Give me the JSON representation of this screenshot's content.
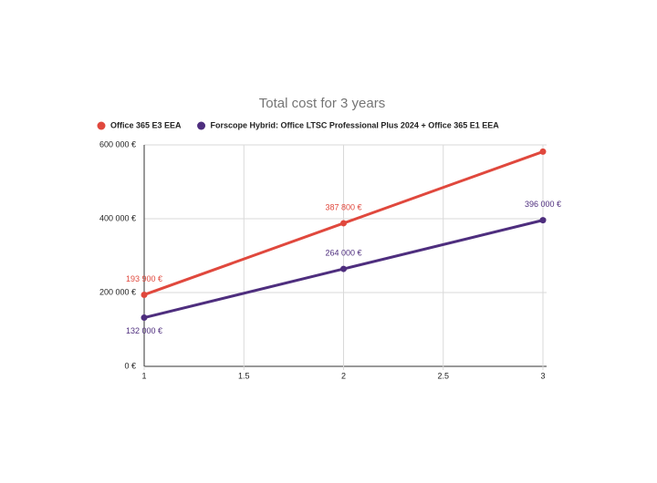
{
  "chart_data": {
    "type": "line",
    "title": "Total cost for 3 years",
    "x": [
      1,
      2,
      3
    ],
    "series": [
      {
        "name": "Office 365 E3 EEA",
        "color": "#e0483d",
        "values": [
          193900,
          387800,
          581700
        ],
        "value_labels": [
          "193 900 €",
          "387 800 €",
          null
        ]
      },
      {
        "name": "Forscope Hybrid: Office LTSC Professional Plus 2024 + Office 365 E1 EEA",
        "color": "#4e2e7e",
        "values": [
          132000,
          264000,
          396000
        ],
        "value_labels": [
          "132 000 €",
          "264 000 €",
          "396 000 €"
        ]
      }
    ],
    "xlim": [
      1,
      3
    ],
    "xticks": [
      1,
      1.5,
      2,
      2.5,
      3
    ],
    "ylim": [
      0,
      600000
    ],
    "yticks": [
      {
        "value": 0,
        "label": "0 €"
      },
      {
        "value": 200000,
        "label": "200 000 €"
      },
      {
        "value": 400000,
        "label": "400 000 €"
      },
      {
        "value": 600000,
        "label": "600 000 €"
      }
    ],
    "grid": true,
    "legend": "top"
  }
}
